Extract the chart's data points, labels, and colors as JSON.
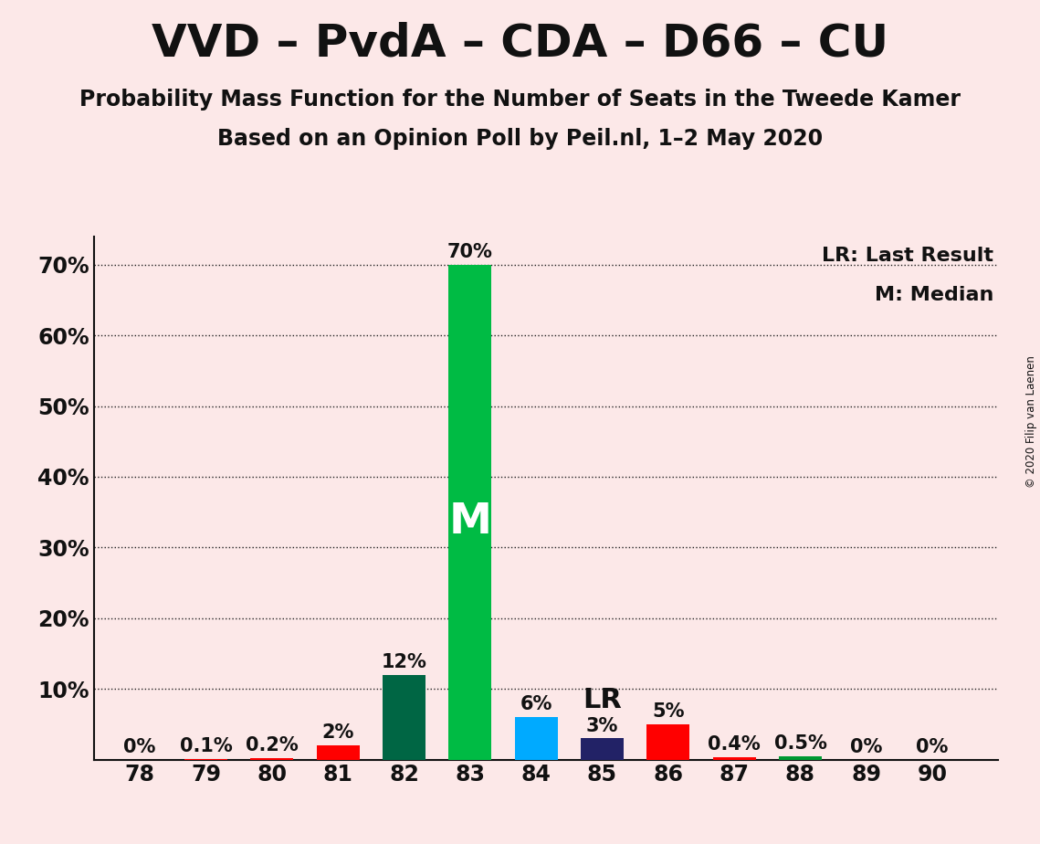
{
  "title": "VVD – PvdA – CDA – D66 – CU",
  "subtitle1": "Probability Mass Function for the Number of Seats in the Tweede Kamer",
  "subtitle2": "Based on an Opinion Poll by Peil.nl, 1–2 May 2020",
  "copyright": "© 2020 Filip van Laenen",
  "legend_lr": "LR: Last Result",
  "legend_m": "M: Median",
  "background_color": "#fce8e8",
  "seats": [
    78,
    79,
    80,
    81,
    82,
    83,
    84,
    85,
    86,
    87,
    88,
    89,
    90
  ],
  "values": [
    0.0,
    0.1,
    0.2,
    2.0,
    12.0,
    70.0,
    6.0,
    3.0,
    5.0,
    0.4,
    0.5,
    0.0,
    0.0
  ],
  "labels": [
    "0%",
    "0.1%",
    "0.2%",
    "2%",
    "12%",
    "70%",
    "6%",
    "3%",
    "5%",
    "0.4%",
    "0.5%",
    "0%",
    "0%"
  ],
  "bar_colors": [
    "#ff0000",
    "#ff0000",
    "#ff0000",
    "#ff0000",
    "#006644",
    "#00bb44",
    "#00aaff",
    "#222266",
    "#ff0000",
    "#ff0000",
    "#009933",
    "#009933",
    "#009933"
  ],
  "median_seat": 83,
  "lr_seat": 85,
  "ylim_max": 74,
  "yticks": [
    10,
    20,
    30,
    40,
    50,
    60,
    70
  ],
  "ytick_labels": [
    "10%",
    "20%",
    "30%",
    "40%",
    "50%",
    "60%",
    "70%"
  ],
  "grid_color": "#222222",
  "title_fontsize": 36,
  "subtitle_fontsize": 17,
  "label_fontsize": 15,
  "tick_fontsize": 17,
  "bar_width": 0.65
}
